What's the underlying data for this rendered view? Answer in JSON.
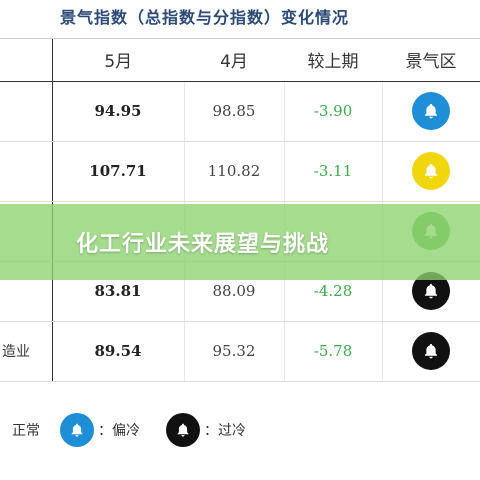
{
  "title": "景气指数（总指数与分指数）变化情况",
  "headers": [
    "5月",
    "4月",
    "较上期",
    "景气区"
  ],
  "rows": [
    {
      "label": "",
      "may": "94.95",
      "apr": "98.85",
      "change": "-3.90",
      "status": "正常",
      "color": "#1e8fd6"
    },
    {
      "label": "",
      "may": "107.71",
      "apr": "110.82",
      "change": "-3.11",
      "status": "偏热",
      "color": "#f2d60c"
    },
    {
      "label": "",
      "may": "",
      "apr": "",
      "change": "",
      "status": "正常",
      "color": "#6ab85a"
    },
    {
      "label": "",
      "may": "83.81",
      "apr": "88.09",
      "change": "-4.28",
      "status": "过冷",
      "color": "#111111"
    },
    {
      "label": "造业",
      "may": "89.54",
      "apr": "95.32",
      "change": "-5.78",
      "status": "过冷",
      "color": "#111111"
    }
  ],
  "banner": "化工行业未来展望与挑战",
  "legend": {
    "normal_label": "正常",
    "cold_label": "：偏冷",
    "overcold_label": "：过冷",
    "normal_color": "#1e8fd6",
    "cold_color": "#1e8fd6",
    "overcold_color": "#111111"
  },
  "icons": {
    "status": "bell-icon"
  }
}
